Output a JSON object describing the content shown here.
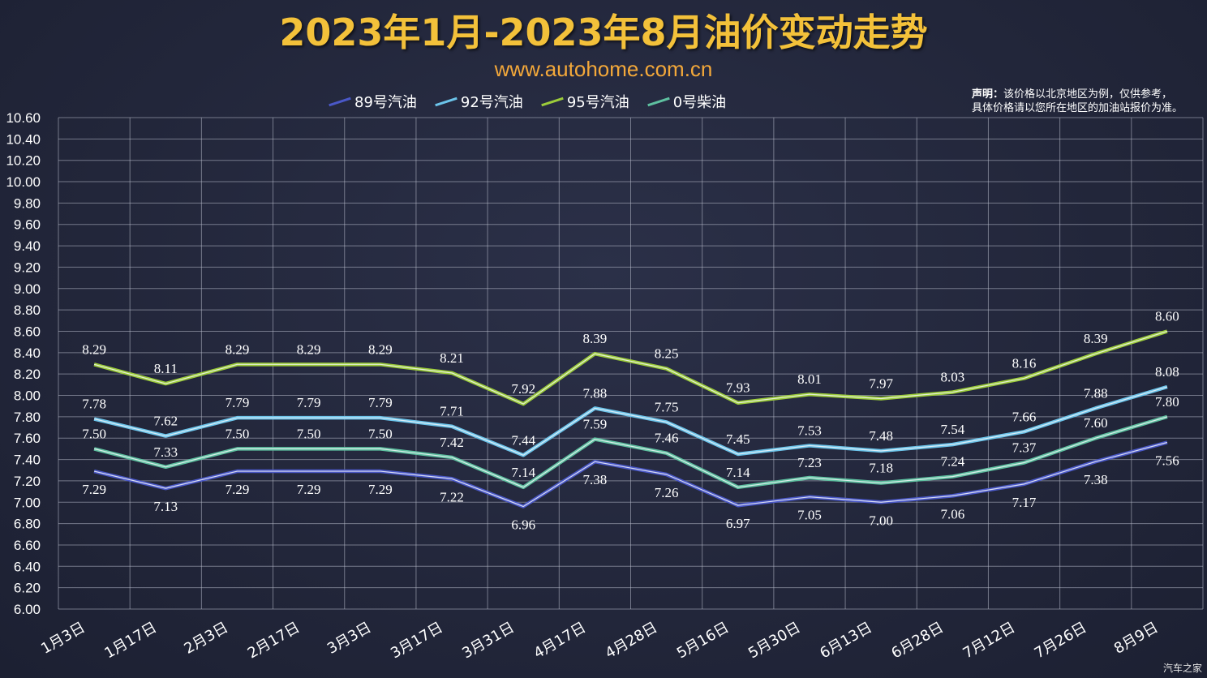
{
  "header": {
    "title": "2023年1月-2023年8月油价变动走势",
    "subtitle": "www.autohome.com.cn"
  },
  "notice": {
    "bold": "声明：",
    "line1": "该价格以北京地区为例，仅供参考，",
    "line2": "具体价格请以您所在地区的加油站报价为准。"
  },
  "watermark": "汽车之家",
  "chart_data": {
    "type": "line",
    "title": "2023年1月-2023年8月油价变动走势",
    "xlabel": "",
    "ylabel": "",
    "ylim": [
      6.0,
      10.6
    ],
    "ytick_step": 0.2,
    "grid": true,
    "legend_position": "top",
    "categories": [
      "1月3日",
      "1月17日",
      "2月3日",
      "2月17日",
      "3月3日",
      "3月17日",
      "3月31日",
      "4月17日",
      "4月28日",
      "5月16日",
      "5月30日",
      "6月13日",
      "6月28日",
      "7月12日",
      "7月26日",
      "8月9日"
    ],
    "yticks": [
      "10.60",
      "10.40",
      "10.20",
      "10.00",
      "9.80",
      "9.60",
      "9.40",
      "9.20",
      "9.00",
      "8.80",
      "8.60",
      "8.40",
      "8.20",
      "8.00",
      "7.80",
      "7.60",
      "7.40",
      "7.20",
      "7.00",
      "6.80",
      "6.60",
      "6.40",
      "6.20",
      "6.00"
    ],
    "series": [
      {
        "name": "89号汽油",
        "color": "#4a58c8",
        "values": [
          7.29,
          7.13,
          7.29,
          7.29,
          7.29,
          7.22,
          6.96,
          7.38,
          7.26,
          6.97,
          7.05,
          7.0,
          7.06,
          7.17,
          7.38,
          7.56
        ]
      },
      {
        "name": "92号汽油",
        "color": "#6cc4ea",
        "values": [
          7.78,
          7.62,
          7.79,
          7.79,
          7.79,
          7.71,
          7.44,
          7.88,
          7.75,
          7.45,
          7.53,
          7.48,
          7.54,
          7.66,
          7.88,
          8.08
        ]
      },
      {
        "name": "95号汽油",
        "color": "#9ccc3a",
        "values": [
          8.29,
          8.11,
          8.29,
          8.29,
          8.29,
          8.21,
          7.92,
          8.39,
          8.25,
          7.93,
          8.01,
          7.97,
          8.03,
          8.16,
          8.39,
          8.6
        ]
      },
      {
        "name": "0号柴油",
        "color": "#5ec0a0",
        "values": [
          7.5,
          7.33,
          7.5,
          7.5,
          7.5,
          7.42,
          7.14,
          7.59,
          7.46,
          7.14,
          7.23,
          7.18,
          7.24,
          7.37,
          7.6,
          7.8
        ]
      }
    ]
  }
}
